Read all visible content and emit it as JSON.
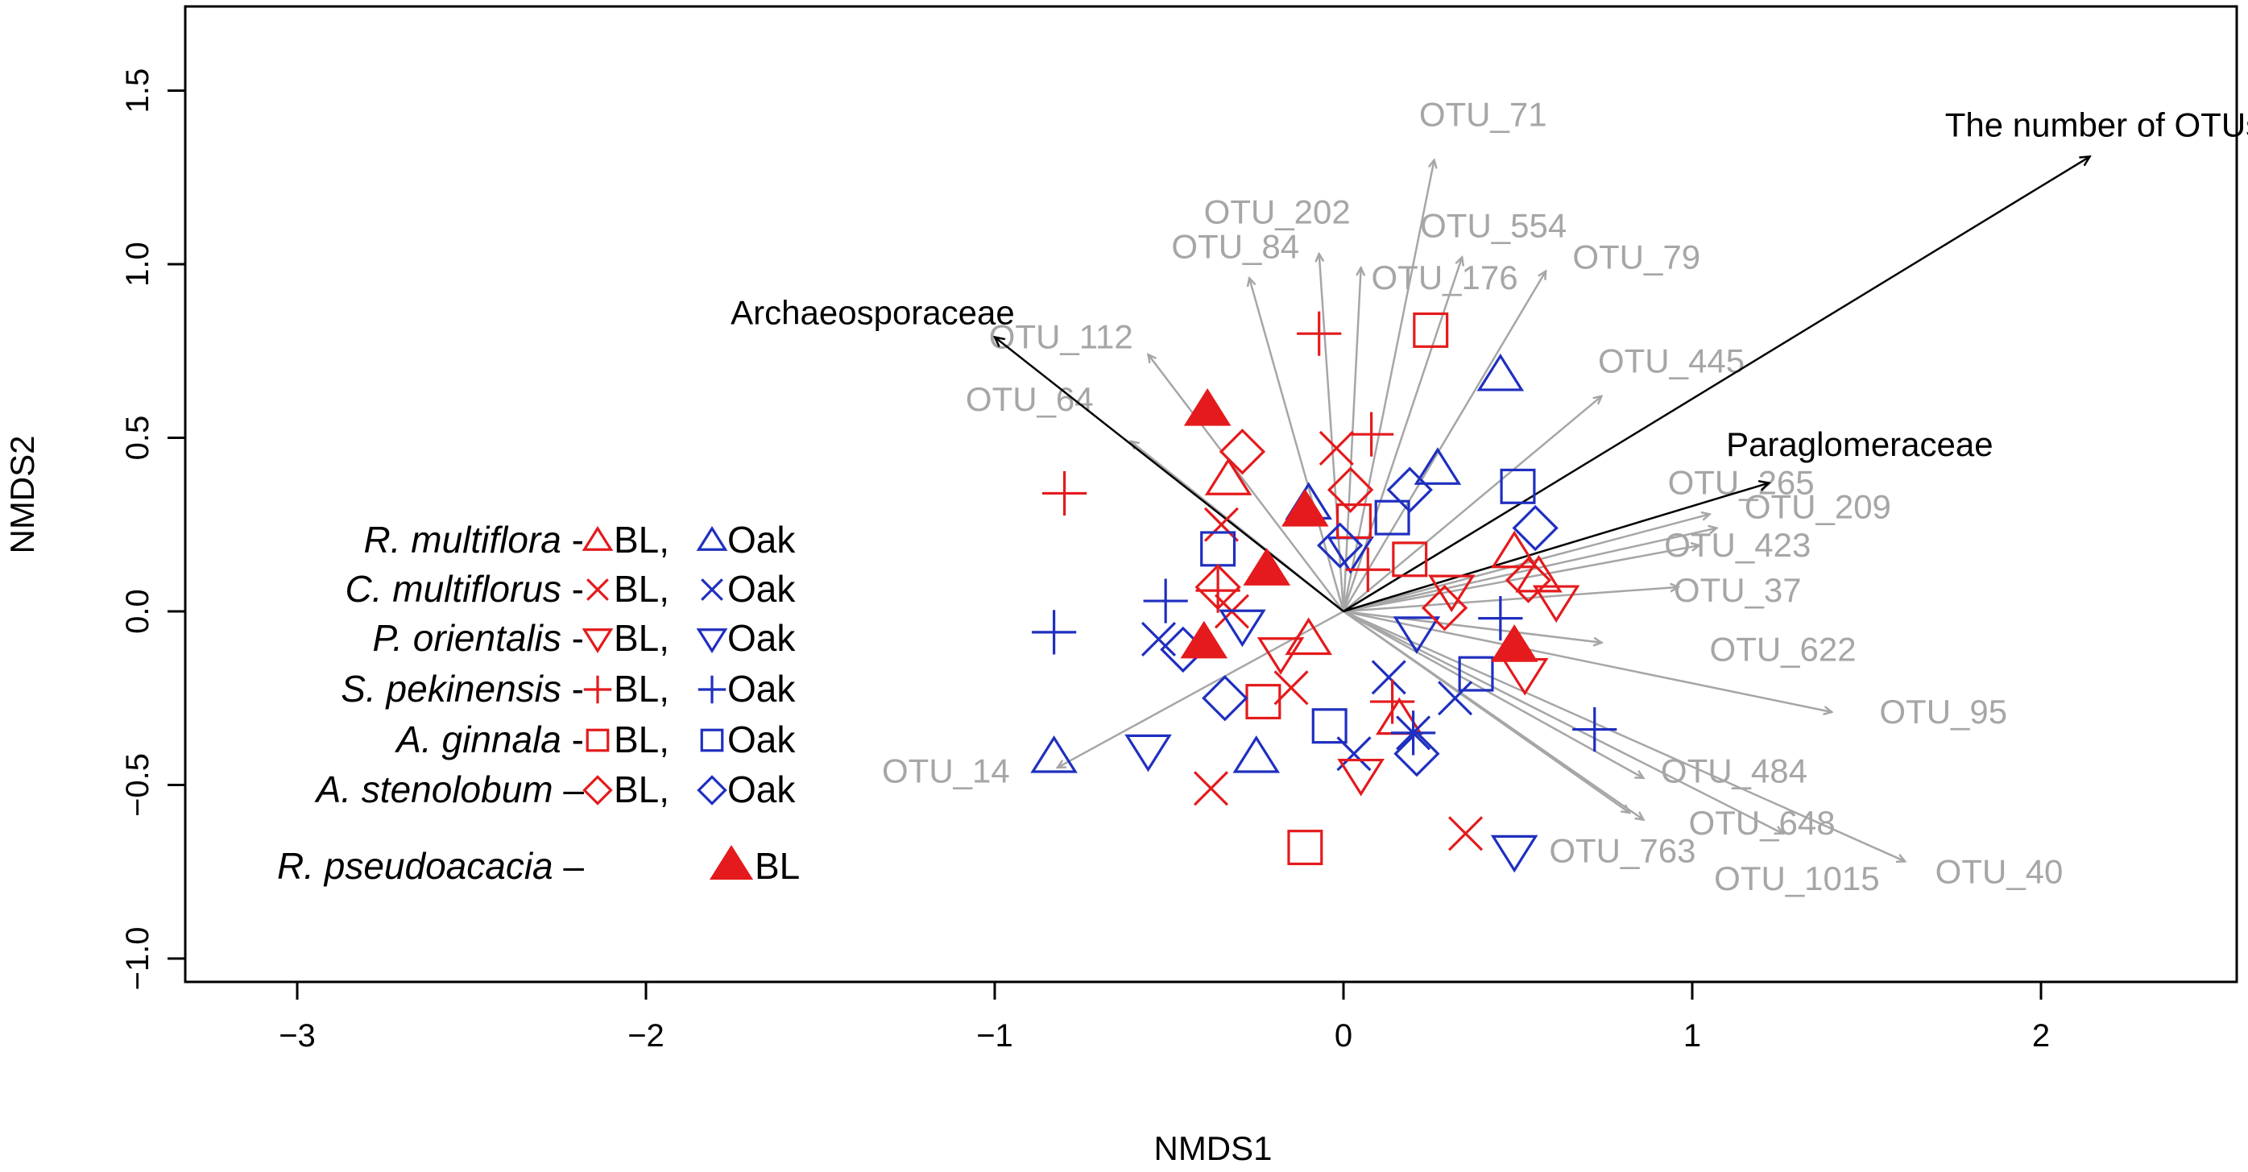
{
  "colors": {
    "bl": "#e41a1c",
    "oak": "#1f2fbf",
    "otu_arrow": "#a6a6a6",
    "fam_arrow": "#000000"
  },
  "chart_data": {
    "type": "scatter",
    "title": "",
    "xlabel": "NMDS1",
    "ylabel": "NMDS2",
    "xlim": [
      -3.35,
      2.55
    ],
    "ylim": [
      -1.07,
      1.75
    ],
    "xticks": [
      -3,
      -2,
      -1,
      0,
      1,
      2
    ],
    "yticks": [
      -1.0,
      -0.5,
      0.0,
      0.5,
      1.0,
      1.5
    ],
    "xtick_labels": [
      "−3",
      "−2",
      "−1",
      "0",
      "1",
      "2"
    ],
    "ytick_labels": [
      "−1.0",
      "−0.5",
      "0.0",
      "0.5",
      "1.0",
      "1.5"
    ],
    "grid": false,
    "otu_vectors": [
      {
        "label": "OTU_71",
        "x": 0.26,
        "y": 1.3,
        "lx": 0.4,
        "ly": 1.43
      },
      {
        "label": "OTU_202",
        "x": -0.07,
        "y": 1.03,
        "lx": -0.19,
        "ly": 1.15
      },
      {
        "label": "OTU_84",
        "x": -0.27,
        "y": 0.96,
        "lx": -0.31,
        "ly": 1.05
      },
      {
        "label": "OTU_554",
        "x": 0.34,
        "y": 1.02,
        "lx": 0.43,
        "ly": 1.11
      },
      {
        "label": "OTU_176",
        "x": 0.05,
        "y": 0.99,
        "lx": 0.29,
        "ly": 0.96
      },
      {
        "label": "OTU_79",
        "x": 0.58,
        "y": 0.98,
        "lx": 0.84,
        "ly": 1.02
      },
      {
        "label": "OTU_112",
        "x": -0.56,
        "y": 0.74,
        "lx": -0.81,
        "ly": 0.79
      },
      {
        "label": "OTU_445",
        "x": 0.74,
        "y": 0.62,
        "lx": 0.94,
        "ly": 0.72
      },
      {
        "label": "OTU_64",
        "x": -0.61,
        "y": 0.49,
        "lx": -0.9,
        "ly": 0.61
      },
      {
        "label": "OTU_265",
        "x": 1.05,
        "y": 0.28,
        "lx": 1.14,
        "ly": 0.37
      },
      {
        "label": "OTU_209",
        "x": 1.07,
        "y": 0.24,
        "lx": 1.36,
        "ly": 0.3
      },
      {
        "label": "OTU_423",
        "x": 1.02,
        "y": 0.19,
        "lx": 1.13,
        "ly": 0.19
      },
      {
        "label": "OTU_37",
        "x": 0.96,
        "y": 0.07,
        "lx": 1.13,
        "ly": 0.06
      },
      {
        "label": "OTU_622",
        "x": 0.74,
        "y": -0.09,
        "lx": 1.26,
        "ly": -0.11
      },
      {
        "label": "OTU_95",
        "x": 1.4,
        "y": -0.29,
        "lx": 1.72,
        "ly": -0.29
      },
      {
        "label": "OTU_14",
        "x": -0.82,
        "y": -0.45,
        "lx": -1.14,
        "ly": -0.46
      },
      {
        "label": "OTU_484",
        "x": 0.86,
        "y": -0.48,
        "lx": 1.12,
        "ly": -0.46
      },
      {
        "label": "OTU_648",
        "x": 0.86,
        "y": -0.6,
        "lx": 1.2,
        "ly": -0.61
      },
      {
        "label": "OTU_763",
        "x": 0.82,
        "y": -0.58,
        "lx": 0.8,
        "ly": -0.69
      },
      {
        "label": "OTU_1015",
        "x": 1.26,
        "y": -0.64,
        "lx": 1.3,
        "ly": -0.77
      },
      {
        "label": "OTU_40",
        "x": 1.61,
        "y": -0.72,
        "lx": 1.88,
        "ly": -0.75
      }
    ],
    "family_vectors": [
      {
        "label": "The number of OTUs",
        "x": 2.14,
        "y": 1.31,
        "lx": 2.18,
        "ly": 1.4
      },
      {
        "label": "Archaeosporaceae",
        "x": -1.0,
        "y": 0.79,
        "lx": -1.35,
        "ly": 0.86
      },
      {
        "label": "Paraglomeraceae",
        "x": 1.22,
        "y": 0.37,
        "lx": 1.48,
        "ly": 0.48
      }
    ],
    "series": [
      {
        "name": "R. multiflora - BL",
        "shape": "triangle",
        "color": "bl",
        "filled": false,
        "points": [
          [
            -0.33,
            0.38
          ],
          [
            -0.1,
            -0.08
          ],
          [
            0.16,
            -0.31
          ],
          [
            0.49,
            0.17
          ],
          [
            0.56,
            0.1
          ]
        ]
      },
      {
        "name": "R. multiflora - Oak",
        "shape": "triangle",
        "color": "oak",
        "filled": false,
        "points": [
          [
            0.45,
            0.68
          ],
          [
            0.27,
            0.41
          ],
          [
            -0.1,
            0.31
          ],
          [
            -0.83,
            -0.42
          ],
          [
            -0.25,
            -0.42
          ]
        ]
      },
      {
        "name": "C. multiflorus - BL",
        "shape": "x",
        "color": "bl",
        "filled": false,
        "points": [
          [
            -0.02,
            0.47
          ],
          [
            -0.35,
            0.25
          ],
          [
            -0.32,
            0.0
          ],
          [
            -0.15,
            -0.22
          ],
          [
            -0.38,
            -0.51
          ],
          [
            0.35,
            -0.64
          ]
        ]
      },
      {
        "name": "C. multiflorus - Oak",
        "shape": "x",
        "color": "oak",
        "filled": false,
        "points": [
          [
            -0.53,
            -0.08
          ],
          [
            0.13,
            -0.19
          ],
          [
            0.2,
            -0.35
          ],
          [
            0.32,
            -0.25
          ],
          [
            0.03,
            -0.41
          ]
        ]
      },
      {
        "name": "P. orientalis - BL",
        "shape": "invtriangle",
        "color": "bl",
        "filled": false,
        "points": [
          [
            -0.18,
            -0.12
          ],
          [
            0.05,
            -0.47
          ],
          [
            0.31,
            0.06
          ],
          [
            0.52,
            -0.18
          ],
          [
            0.61,
            0.03
          ]
        ]
      },
      {
        "name": "P. orientalis - Oak",
        "shape": "invtriangle",
        "color": "oak",
        "filled": false,
        "points": [
          [
            -0.56,
            -0.4
          ],
          [
            -0.29,
            -0.04
          ],
          [
            0.02,
            0.17
          ],
          [
            0.21,
            -0.06
          ],
          [
            0.49,
            -0.69
          ]
        ]
      },
      {
        "name": "S. pekinensis - BL",
        "shape": "plus",
        "color": "bl",
        "filled": false,
        "points": [
          [
            -0.07,
            0.8
          ],
          [
            0.08,
            0.51
          ],
          [
            -0.8,
            0.34
          ],
          [
            -0.36,
            0.06
          ],
          [
            0.14,
            -0.26
          ],
          [
            0.07,
            0.12
          ]
        ]
      },
      {
        "name": "S. pekinensis - Oak",
        "shape": "plus",
        "color": "oak",
        "filled": false,
        "points": [
          [
            -0.51,
            0.03
          ],
          [
            -0.83,
            -0.06
          ],
          [
            0.2,
            -0.35
          ],
          [
            0.45,
            -0.02
          ],
          [
            0.72,
            -0.34
          ]
        ]
      },
      {
        "name": "A. ginnala - BL",
        "shape": "square",
        "color": "bl",
        "filled": false,
        "points": [
          [
            0.25,
            0.81
          ],
          [
            -0.23,
            -0.26
          ],
          [
            0.03,
            0.26
          ],
          [
            0.19,
            0.15
          ],
          [
            -0.11,
            -0.68
          ]
        ]
      },
      {
        "name": "A. ginnala - Oak",
        "shape": "square",
        "color": "oak",
        "filled": false,
        "points": [
          [
            0.5,
            0.36
          ],
          [
            0.14,
            0.27
          ],
          [
            -0.36,
            0.18
          ],
          [
            0.38,
            -0.18
          ],
          [
            -0.04,
            -0.33
          ]
        ]
      },
      {
        "name": "A. stenolobum - BL",
        "shape": "diamond",
        "color": "bl",
        "filled": false,
        "points": [
          [
            -0.29,
            0.46
          ],
          [
            0.02,
            0.35
          ],
          [
            -0.36,
            0.07
          ],
          [
            0.29,
            0.01
          ],
          [
            0.53,
            0.09
          ]
        ]
      },
      {
        "name": "A. stenolobum - Oak",
        "shape": "diamond",
        "color": "oak",
        "filled": false,
        "points": [
          [
            0.19,
            0.35
          ],
          [
            0.55,
            0.24
          ],
          [
            -0.46,
            -0.11
          ],
          [
            -0.34,
            -0.25
          ],
          [
            0.21,
            -0.41
          ],
          [
            -0.01,
            0.19
          ]
        ]
      },
      {
        "name": "R. pseudoacacia - BL",
        "shape": "triangle",
        "color": "bl",
        "filled": true,
        "points": [
          [
            -0.39,
            0.58
          ],
          [
            -0.11,
            0.29
          ],
          [
            -0.22,
            0.12
          ],
          [
            -0.4,
            -0.09
          ],
          [
            0.49,
            -0.1
          ]
        ]
      }
    ]
  },
  "legend": [
    {
      "species": "R. multiflora",
      "sep": " - ",
      "shape": "triangle",
      "bl_label": "BL,",
      "oak_label": "Oak"
    },
    {
      "species": "C. multiflorus",
      "sep": " - ",
      "shape": "x",
      "bl_label": "BL,",
      "oak_label": "Oak"
    },
    {
      "species": "P. orientalis",
      "sep": " - ",
      "shape": "invtriangle",
      "bl_label": "BL,",
      "oak_label": "Oak"
    },
    {
      "species": "S. pekinensis",
      "sep": " - ",
      "shape": "plus",
      "bl_label": "BL,",
      "oak_label": "Oak"
    },
    {
      "species": "A. ginnala",
      "sep": " - ",
      "shape": "square",
      "bl_label": "BL,",
      "oak_label": "Oak"
    },
    {
      "species": "A. stenolobum",
      "sep": " – ",
      "shape": "diamond",
      "bl_label": "BL,",
      "oak_label": "Oak"
    },
    {
      "species": "R. pseudoacacia",
      "sep": " – ",
      "shape": "triangle-filled",
      "bl_label": "BL",
      "oak_label": ""
    }
  ]
}
